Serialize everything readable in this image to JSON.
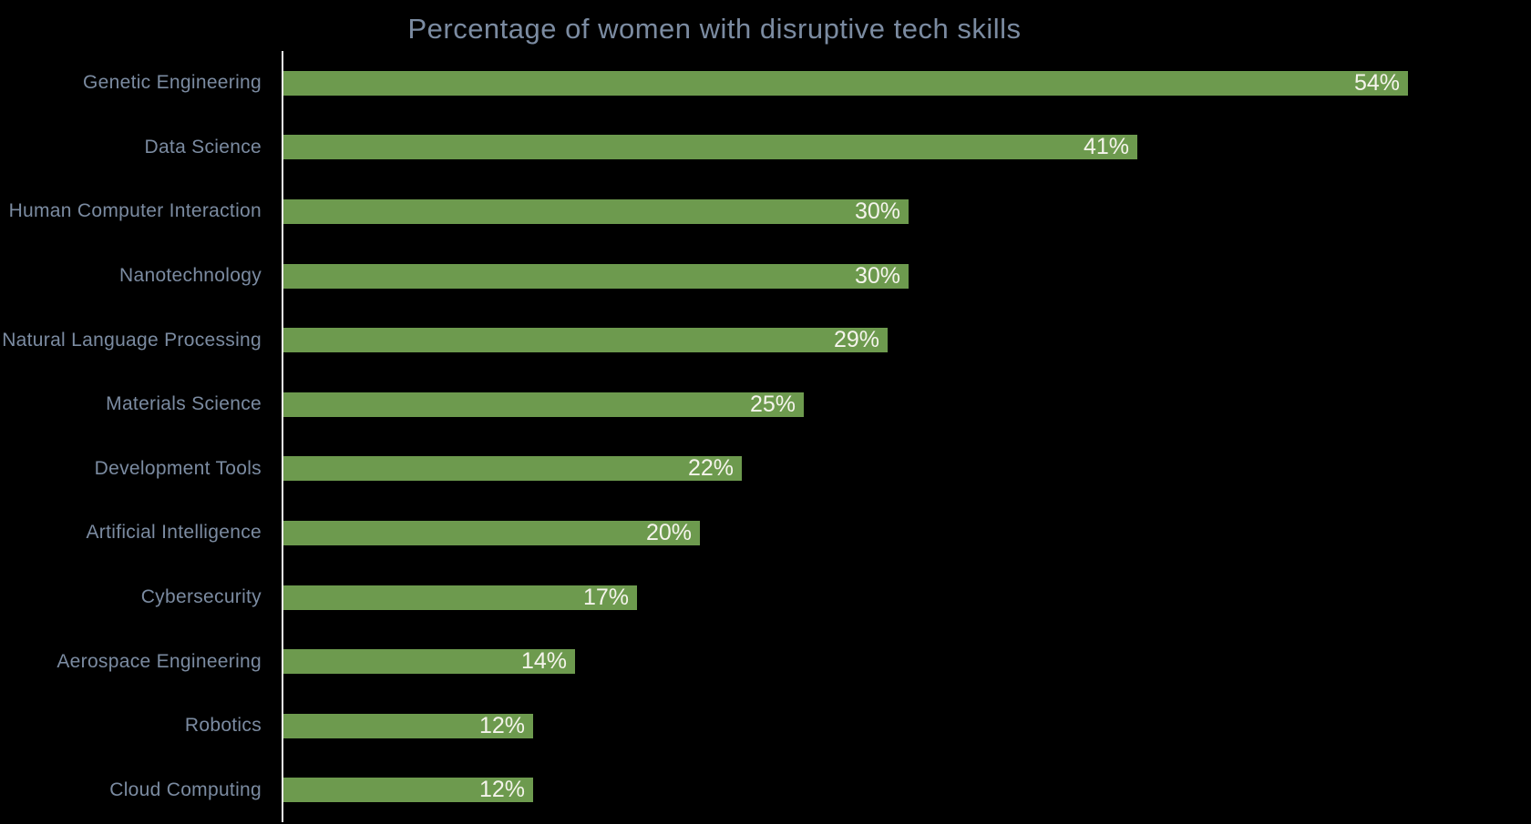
{
  "chart_data": {
    "type": "bar",
    "orientation": "horizontal",
    "title": "Percentage of women with disruptive tech skills",
    "categories": [
      "Genetic Engineering",
      "Data Science",
      "Human Computer Interaction",
      "Nanotechnology",
      "Natural Language Processing",
      "Materials Science",
      "Development Tools",
      "Artificial Intelligence",
      "Cybersecurity",
      "Aerospace Engineering",
      "Robotics",
      "Cloud Computing"
    ],
    "values": [
      54,
      41,
      30,
      30,
      29,
      25,
      22,
      20,
      17,
      14,
      12,
      12
    ],
    "value_suffix": "%",
    "xlabel": "",
    "ylabel": "",
    "xlim": [
      0,
      54
    ],
    "grid": false,
    "legend": false,
    "value_labels_position": "inside-end",
    "colors": {
      "background": "#000000",
      "bar": "#6d9a4e",
      "title_text": "#7b8ba1",
      "category_text": "#7b8ba1",
      "value_text": "#f5f4ec",
      "axis_line": "#f2f2f2"
    }
  }
}
